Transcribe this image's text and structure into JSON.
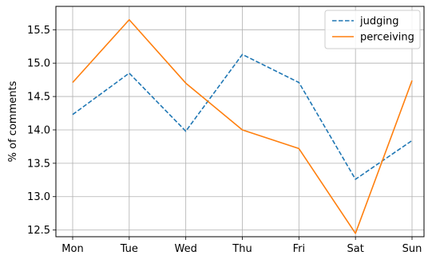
{
  "chart_data": {
    "type": "line",
    "categories": [
      "Mon",
      "Tue",
      "Wed",
      "Thu",
      "Fri",
      "Sat",
      "Sun"
    ],
    "series": [
      {
        "name": "judging",
        "values": [
          14.23,
          14.85,
          13.98,
          15.13,
          14.71,
          13.26,
          13.84
        ],
        "color": "#1f77b4",
        "style": "dashed"
      },
      {
        "name": "perceiving",
        "values": [
          14.71,
          15.65,
          14.7,
          14.0,
          13.72,
          12.45,
          14.74
        ],
        "color": "#ff7f0e",
        "style": "solid"
      }
    ],
    "title": "",
    "xlabel": "",
    "ylabel": "% of comments",
    "ylim": [
      12.4,
      15.85
    ],
    "yticks": [
      "12.5",
      "13.0",
      "13.5",
      "14.0",
      "14.5",
      "15.0",
      "15.5"
    ],
    "grid": true,
    "legend": "top-right"
  }
}
